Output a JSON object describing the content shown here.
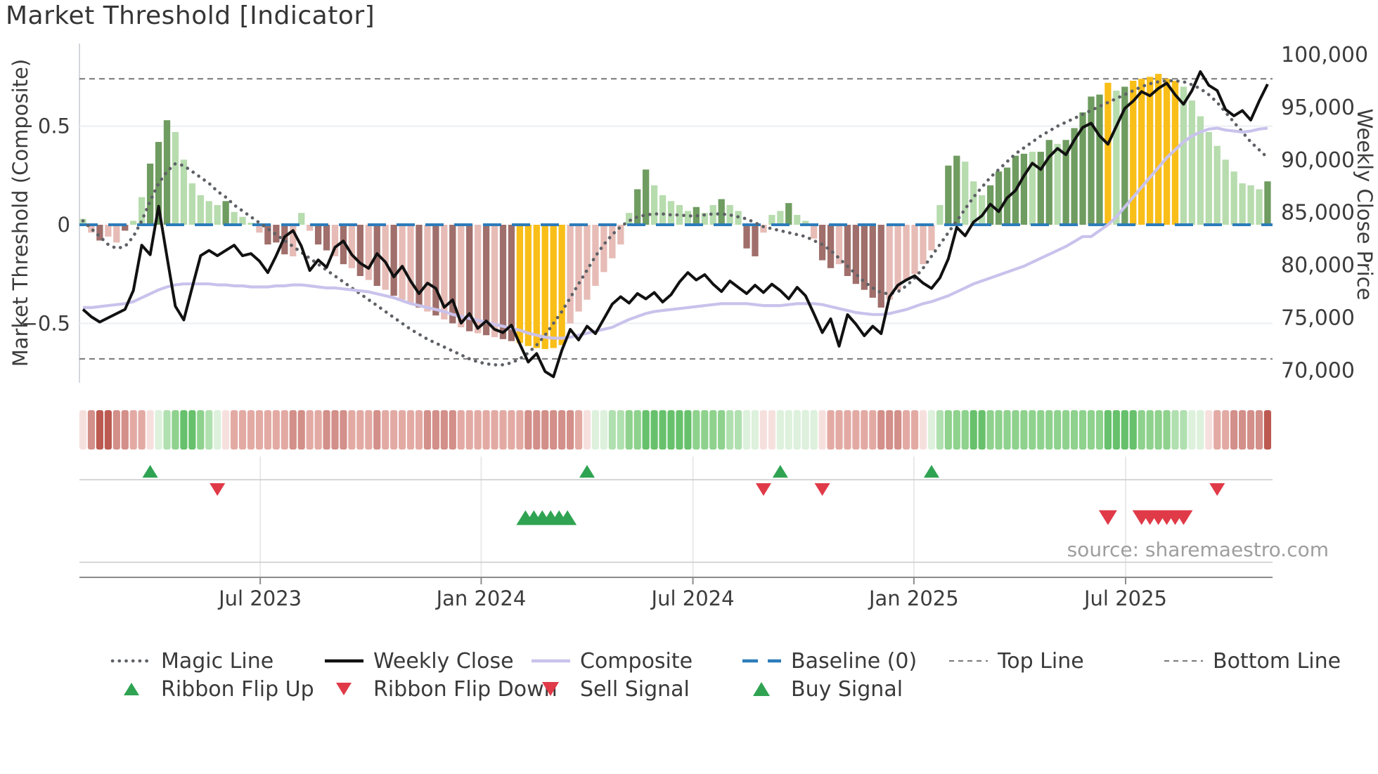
{
  "title": "Market Threshold [Indicator]",
  "source_note": "source: sharemaestro.com",
  "axes": {
    "left_label": "Market Threshold (Composite)",
    "right_label": "Weekly Close Price",
    "left_ticks": [
      {
        "value": 0.5,
        "label": "0.5"
      },
      {
        "value": 0.0,
        "label": "0"
      },
      {
        "value": -0.5,
        "label": "−0.5"
      }
    ],
    "right_ticks": [
      {
        "value": 100000,
        "label": "100,000"
      },
      {
        "value": 95000,
        "label": "95,000"
      },
      {
        "value": 90000,
        "label": "90,000"
      },
      {
        "value": 85000,
        "label": "85,000"
      },
      {
        "value": 80000,
        "label": "80,000"
      },
      {
        "value": 75000,
        "label": "75,000"
      },
      {
        "value": 70000,
        "label": "70,000"
      }
    ],
    "x_ticks": [
      {
        "week": 21.1,
        "label": "Jul 2023"
      },
      {
        "week": 47.4,
        "label": "Jan 2024"
      },
      {
        "week": 72.6,
        "label": "Jul 2024"
      },
      {
        "week": 98.9,
        "label": "Jan 2025"
      },
      {
        "week": 124.1,
        "label": "Jul 2025"
      }
    ]
  },
  "chart_data": {
    "type": "bar",
    "subtype": "weekly composite-threshold bars with overlaid lines, signal ribbon and trade markers",
    "weeks": 142,
    "ylim_threshold": [
      -0.8,
      0.9
    ],
    "ylim_price": [
      68000,
      101000
    ],
    "reference_lines": {
      "top_line": 0.74,
      "baseline": 0,
      "bottom_line": -0.68
    },
    "bars": {
      "name": "Market Threshold (Composite)",
      "values": [
        0.03,
        -0.04,
        -0.08,
        -0.06,
        -0.09,
        -0.03,
        0.02,
        0.14,
        0.31,
        0.42,
        0.53,
        0.47,
        0.33,
        0.21,
        0.15,
        0.12,
        0.1,
        0.12,
        0.065,
        0.04,
        0.01,
        -0.04,
        -0.1,
        -0.09,
        -0.15,
        -0.16,
        0.06,
        -0.03,
        -0.1,
        -0.13,
        -0.16,
        -0.2,
        -0.22,
        -0.26,
        -0.28,
        -0.31,
        -0.33,
        -0.36,
        -0.38,
        -0.4,
        -0.42,
        -0.44,
        -0.46,
        -0.48,
        -0.5,
        -0.52,
        -0.54,
        -0.55,
        -0.56,
        -0.57,
        -0.58,
        -0.59,
        -0.6,
        -0.615,
        -0.625,
        -0.63,
        -0.625,
        -0.61,
        -0.5,
        -0.44,
        -0.38,
        -0.31,
        -0.24,
        -0.17,
        -0.1,
        0.06,
        0.18,
        0.28,
        0.2,
        0.15,
        0.12,
        0.1,
        0.07,
        0.09,
        0.06,
        0.1,
        0.13,
        0.1,
        0.07,
        -0.12,
        -0.16,
        -0.04,
        0.05,
        0.07,
        0.11,
        0.05,
        0.02,
        -0.07,
        -0.18,
        -0.22,
        -0.2,
        -0.26,
        -0.3,
        -0.33,
        -0.37,
        -0.42,
        -0.38,
        -0.33,
        -0.28,
        -0.25,
        -0.2,
        -0.13,
        0.1,
        0.3,
        0.35,
        0.32,
        0.22,
        0.15,
        0.2,
        0.27,
        0.29,
        0.35,
        0.36,
        0.37,
        0.37,
        0.43,
        0.41,
        0.43,
        0.49,
        0.57,
        0.65,
        0.66,
        0.72,
        0.68,
        0.7,
        0.73,
        0.74,
        0.75,
        0.765,
        0.74,
        0.73,
        0.7,
        0.63,
        0.55,
        0.47,
        0.4,
        0.33,
        0.27,
        0.21,
        0.2,
        0.18,
        0.22
      ],
      "colors": [
        "lg",
        "lr",
        "dr",
        "lr",
        "lr",
        "dr",
        "lg",
        "lg",
        "dg",
        "dg",
        "dg",
        "lg",
        "lg",
        "lg",
        "lg",
        "lg",
        "lg",
        "dg",
        "lg",
        "lg",
        "lg",
        "lr",
        "dr",
        "dr",
        "dr",
        "lr",
        "lg",
        "lr",
        "dr",
        "dr",
        "lr",
        "dr",
        "lr",
        "dr",
        "lr",
        "dr",
        "lr",
        "dr",
        "lr",
        "lr",
        "dr",
        "lr",
        "dr",
        "lr",
        "dr",
        "lr",
        "dr",
        "lr",
        "dr",
        "lr",
        "dr",
        "dr",
        "au",
        "au",
        "au",
        "au",
        "au",
        "au",
        "lr",
        "lr",
        "lr",
        "lr",
        "lr",
        "lr",
        "lr",
        "lg",
        "dg",
        "dg",
        "lg",
        "lg",
        "lg",
        "lg",
        "lg",
        "dg",
        "lg",
        "lg",
        "dg",
        "lg",
        "lg",
        "dr",
        "dr",
        "lr",
        "lg",
        "lg",
        "dg",
        "lg",
        "lg",
        "lr",
        "dr",
        "dr",
        "lr",
        "dr",
        "dr",
        "dr",
        "dr",
        "dr",
        "lr",
        "lr",
        "lr",
        "lr",
        "lr",
        "lr",
        "lg",
        "dg",
        "dg",
        "lg",
        "lg",
        "lg",
        "dg",
        "dg",
        "dg",
        "dg",
        "dg",
        "lg",
        "dg",
        "dg",
        "lg",
        "dg",
        "dg",
        "dg",
        "dg",
        "dg",
        "au",
        "lg",
        "dg",
        "au",
        "au",
        "au",
        "au",
        "au",
        "au",
        "lg",
        "lg",
        "lg",
        "lg",
        "lg",
        "lg",
        "lg",
        "lg",
        "lg",
        "lg",
        "dg"
      ]
    },
    "series": [
      {
        "name": "Weekly Close",
        "axis": "price",
        "color_key": "weekly_close",
        "values": [
          75800,
          75100,
          74600,
          75000,
          75400,
          75800,
          77600,
          81900,
          81000,
          85600,
          80800,
          76100,
          74800,
          77900,
          80900,
          81400,
          80900,
          81400,
          81900,
          80900,
          81100,
          80400,
          79300,
          80900,
          82700,
          83300,
          81800,
          79500,
          80500,
          79800,
          81700,
          82300,
          81000,
          80200,
          79700,
          81100,
          80300,
          78900,
          79900,
          78500,
          77300,
          78300,
          77800,
          76000,
          76700,
          74500,
          75400,
          74000,
          74700,
          73900,
          73600,
          74300,
          72500,
          70800,
          71600,
          69900,
          69400,
          71900,
          73900,
          72900,
          74200,
          73500,
          74900,
          76300,
          77000,
          76400,
          77300,
          76800,
          77400,
          76500,
          77200,
          78400,
          79300,
          78600,
          79100,
          78200,
          77500,
          78500,
          77900,
          77300,
          78100,
          77400,
          78200,
          77600,
          76800,
          77900,
          77100,
          75400,
          73600,
          74900,
          72300,
          75300,
          74400,
          73300,
          74200,
          73500,
          77000,
          78100,
          78600,
          79000,
          78300,
          77800,
          78800,
          80600,
          83600,
          82800,
          84100,
          84700,
          85800,
          85100,
          86400,
          87100,
          88500,
          89700,
          89100,
          90300,
          91100,
          90500,
          91900,
          93100,
          93500,
          92300,
          91500,
          93200,
          94900,
          95600,
          96500,
          96100,
          96800,
          97300,
          96200,
          95300,
          96600,
          98400,
          97100,
          96600,
          94800,
          94200,
          94700,
          93800,
          95600,
          97200
        ]
      },
      {
        "name": "Composite",
        "axis": "threshold",
        "color_key": "composite",
        "values": [
          -0.42,
          -0.42,
          -0.415,
          -0.41,
          -0.405,
          -0.4,
          -0.39,
          -0.37,
          -0.35,
          -0.33,
          -0.315,
          -0.305,
          -0.3,
          -0.3,
          -0.3,
          -0.3,
          -0.305,
          -0.305,
          -0.31,
          -0.31,
          -0.315,
          -0.315,
          -0.315,
          -0.31,
          -0.31,
          -0.305,
          -0.305,
          -0.31,
          -0.315,
          -0.32,
          -0.32,
          -0.325,
          -0.33,
          -0.335,
          -0.34,
          -0.35,
          -0.36,
          -0.37,
          -0.385,
          -0.4,
          -0.41,
          -0.42,
          -0.43,
          -0.44,
          -0.455,
          -0.465,
          -0.475,
          -0.485,
          -0.495,
          -0.505,
          -0.515,
          -0.525,
          -0.535,
          -0.55,
          -0.56,
          -0.57,
          -0.575,
          -0.575,
          -0.57,
          -0.56,
          -0.55,
          -0.54,
          -0.53,
          -0.52,
          -0.5,
          -0.48,
          -0.465,
          -0.45,
          -0.44,
          -0.435,
          -0.43,
          -0.425,
          -0.42,
          -0.415,
          -0.41,
          -0.405,
          -0.4,
          -0.4,
          -0.4,
          -0.4,
          -0.405,
          -0.41,
          -0.41,
          -0.41,
          -0.405,
          -0.4,
          -0.4,
          -0.4,
          -0.405,
          -0.415,
          -0.425,
          -0.435,
          -0.445,
          -0.45,
          -0.455,
          -0.455,
          -0.45,
          -0.44,
          -0.43,
          -0.415,
          -0.4,
          -0.39,
          -0.375,
          -0.36,
          -0.34,
          -0.32,
          -0.3,
          -0.285,
          -0.27,
          -0.255,
          -0.24,
          -0.225,
          -0.21,
          -0.19,
          -0.17,
          -0.15,
          -0.13,
          -0.11,
          -0.085,
          -0.06,
          -0.06,
          -0.03,
          0.0,
          0.04,
          0.09,
          0.14,
          0.19,
          0.24,
          0.29,
          0.34,
          0.38,
          0.42,
          0.45,
          0.47,
          0.485,
          0.49,
          0.48,
          0.475,
          0.47,
          0.475,
          0.485,
          0.49
        ]
      },
      {
        "name": "Magic Line",
        "axis": "threshold",
        "color_key": "magic_line",
        "values": [
          0.02,
          -0.02,
          -0.06,
          -0.1,
          -0.12,
          -0.11,
          -0.06,
          0.02,
          0.12,
          0.21,
          0.27,
          0.31,
          0.3,
          0.27,
          0.24,
          0.21,
          0.17,
          0.14,
          0.1,
          0.07,
          0.04,
          0.01,
          -0.02,
          -0.05,
          -0.08,
          -0.11,
          -0.14,
          -0.17,
          -0.2,
          -0.23,
          -0.26,
          -0.29,
          -0.32,
          -0.35,
          -0.38,
          -0.41,
          -0.44,
          -0.47,
          -0.5,
          -0.53,
          -0.555,
          -0.58,
          -0.6,
          -0.62,
          -0.64,
          -0.66,
          -0.68,
          -0.695,
          -0.705,
          -0.71,
          -0.71,
          -0.7,
          -0.68,
          -0.65,
          -0.61,
          -0.56,
          -0.5,
          -0.44,
          -0.37,
          -0.3,
          -0.23,
          -0.16,
          -0.1,
          -0.05,
          -0.01,
          0.02,
          0.04,
          0.05,
          0.055,
          0.055,
          0.05,
          0.05,
          0.045,
          0.045,
          0.05,
          0.055,
          0.055,
          0.05,
          0.04,
          0.03,
          0.01,
          -0.01,
          -0.02,
          -0.03,
          -0.04,
          -0.05,
          -0.06,
          -0.08,
          -0.1,
          -0.13,
          -0.17,
          -0.21,
          -0.25,
          -0.29,
          -0.32,
          -0.345,
          -0.35,
          -0.34,
          -0.31,
          -0.27,
          -0.22,
          -0.16,
          -0.1,
          -0.04,
          0.02,
          0.08,
          0.14,
          0.19,
          0.24,
          0.28,
          0.32,
          0.36,
          0.39,
          0.42,
          0.45,
          0.475,
          0.5,
          0.52,
          0.54,
          0.56,
          0.58,
          0.6,
          0.62,
          0.64,
          0.66,
          0.68,
          0.7,
          0.715,
          0.725,
          0.73,
          0.73,
          0.725,
          0.71,
          0.69,
          0.66,
          0.62,
          0.57,
          0.52,
          0.47,
          0.42,
          0.38,
          0.34
        ]
      }
    ],
    "ribbon": {
      "colors": [
        "p1",
        "p3",
        "p4",
        "p4",
        "p3",
        "p3",
        "p2",
        "p2",
        "p1",
        "g1",
        "g2",
        "g3",
        "g4",
        "g4",
        "g3",
        "g2",
        "g1",
        "p1",
        "p2",
        "p2",
        "p2",
        "p2",
        "p2",
        "p2",
        "p2",
        "p3",
        "p3",
        "p2",
        "p2",
        "p3",
        "p3",
        "p3",
        "p2",
        "p2",
        "p2",
        "p3",
        "p2",
        "p2",
        "p2",
        "p2",
        "p2",
        "p3",
        "p3",
        "p3",
        "p3",
        "p2",
        "p2",
        "p2",
        "p2",
        "p2",
        "p2",
        "p2",
        "p2",
        "p3",
        "p3",
        "p3",
        "p3",
        "p3",
        "p3",
        "p2",
        "p1",
        "g1",
        "g1",
        "g2",
        "g2",
        "g3",
        "g3",
        "g4",
        "g4",
        "g4",
        "g4",
        "g4",
        "g4",
        "g3",
        "g3",
        "g3",
        "g3",
        "g2",
        "g2",
        "g1",
        "g1",
        "p1",
        "p1",
        "g1",
        "g1",
        "g1",
        "g1",
        "g1",
        "p1",
        "p2",
        "p2",
        "p2",
        "p2",
        "p2",
        "p2",
        "p3",
        "p3",
        "p3",
        "p2",
        "p2",
        "p1",
        "g1",
        "g2",
        "g3",
        "g3",
        "g3",
        "g4",
        "g4",
        "g3",
        "g3",
        "g3",
        "g3",
        "g3",
        "g3",
        "g3",
        "g3",
        "g3",
        "g3",
        "g3",
        "g3",
        "g3",
        "g3",
        "g4",
        "g4",
        "g4",
        "g4",
        "g3",
        "g3",
        "g3",
        "g3",
        "g2",
        "g2",
        "g1",
        "g1",
        "p1",
        "p2",
        "p2",
        "p3",
        "p3",
        "p3",
        "p3",
        "p4"
      ]
    },
    "signals": {
      "ribbon_flip_up_weeks": [
        8,
        60,
        83,
        101
      ],
      "ribbon_flip_down_weeks": [
        16,
        81,
        88,
        135
      ],
      "buy_signal_weeks": [
        52,
        53,
        54,
        55,
        56,
        57
      ],
      "sell_signal_weeks": [
        122,
        126,
        127,
        128,
        129,
        130,
        131
      ]
    }
  },
  "colors": {
    "bar_palette": {
      "dg": "#6f9c60",
      "lg": "#b7dcae",
      "dr": "#a06f6b",
      "lr": "#e7bcb6",
      "au": "#f9be18"
    },
    "ribbon_palette": {
      "p1": "#f6e0de",
      "p2": "#e3aaa4",
      "p3": "#d38f89",
      "p4": "#bc5a51",
      "g1": "#ddf1dc",
      "g2": "#b0e0af",
      "g3": "#8ed28d",
      "g4": "#67c16c"
    },
    "weekly_close": "#111111",
    "composite": "#c9c2ec",
    "magic_line": "#5e6166",
    "baseline": "#2d7cba",
    "ref_dashed": "#7f7f7f",
    "signal_up": "#2fa352",
    "signal_down": "#e03a48",
    "grid": "#eceff3",
    "panel_line": "#c9c9c9",
    "panel_grid": "#e9e9e9",
    "axis_line": "#8c8c8c",
    "spine": "#d4d7dc",
    "axis_text": "#3c3c3c",
    "muted_text": "#9e9e9e"
  },
  "legend": {
    "rows": [
      [
        {
          "type": "magic-line",
          "label": "Magic Line"
        },
        {
          "type": "weekly-close",
          "label": "Weekly Close"
        },
        {
          "type": "composite",
          "label": "Composite"
        },
        {
          "type": "baseline",
          "label": "Baseline (0)"
        },
        {
          "type": "top-line",
          "label": "Top Line"
        },
        {
          "type": "bottom-line",
          "label": "Bottom Line"
        }
      ],
      [
        {
          "type": "flip-up",
          "label": "Ribbon Flip Up"
        },
        {
          "type": "flip-down",
          "label": "Ribbon Flip Down"
        },
        {
          "type": "sell",
          "label": "Sell Signal"
        },
        {
          "type": "buy",
          "label": "Buy Signal"
        }
      ]
    ]
  }
}
